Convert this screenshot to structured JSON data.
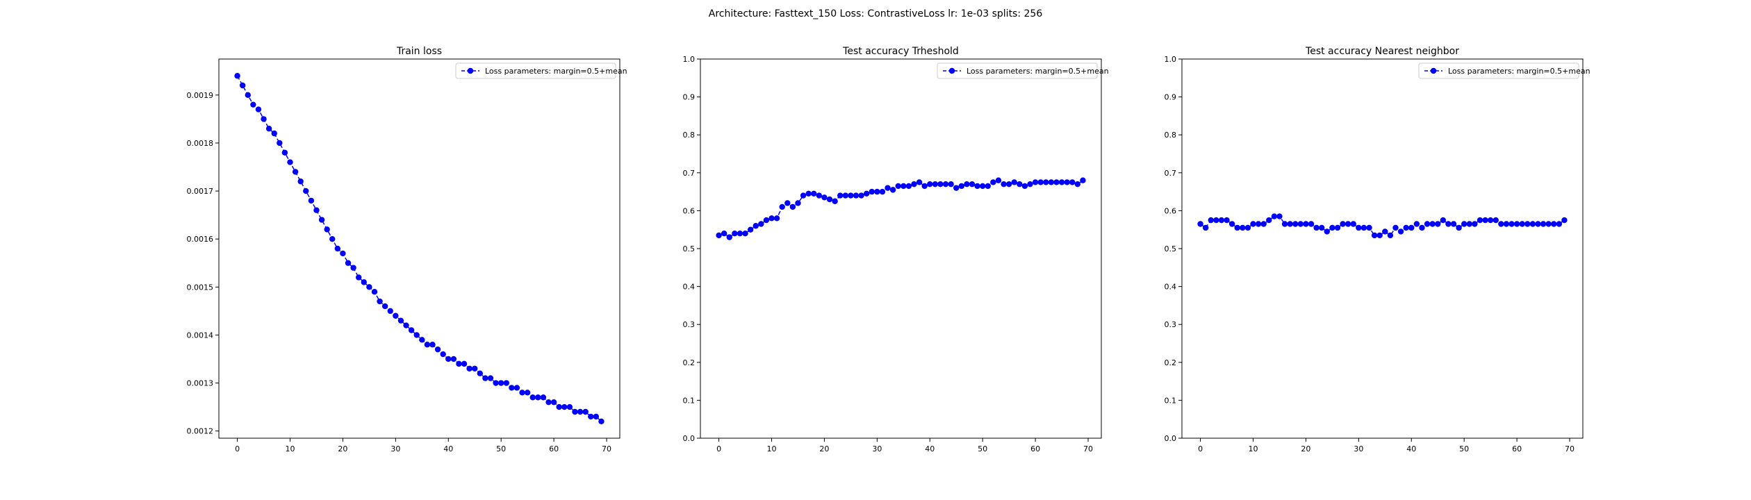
{
  "figure": {
    "suptitle": "Architecture: Fasttext_150 Loss: ContrastiveLoss lr: 1e-03 splits: 256"
  },
  "colors": {
    "series": "#0000ff",
    "axes": "#000000",
    "background": "#ffffff",
    "legend_border": "#cccccc"
  },
  "chart_data": [
    {
      "type": "line",
      "title": "Train loss",
      "xlabel": "",
      "ylabel": "",
      "xlim": [
        -3.5,
        72.5
      ],
      "ylim": [
        0.001185,
        0.001975
      ],
      "xticks": [
        0,
        10,
        20,
        30,
        40,
        50,
        60,
        70
      ],
      "yticks": [
        0.0012,
        0.0013,
        0.0014,
        0.0015,
        0.0016,
        0.0017,
        0.0018,
        0.0019
      ],
      "ytick_labels": [
        "0.0012",
        "0.0013",
        "0.0014",
        "0.0015",
        "0.0016",
        "0.0017",
        "0.0018",
        "0.0019"
      ],
      "grid": false,
      "legend_position": "top-right",
      "series": [
        {
          "name": "Loss parameters: margin=0.5+mean",
          "marker": "circle",
          "linestyle": "dashed",
          "x": [
            0,
            1,
            2,
            3,
            4,
            5,
            6,
            7,
            8,
            9,
            10,
            11,
            12,
            13,
            14,
            15,
            16,
            17,
            18,
            19,
            20,
            21,
            22,
            23,
            24,
            25,
            26,
            27,
            28,
            29,
            30,
            31,
            32,
            33,
            34,
            35,
            36,
            37,
            38,
            39,
            40,
            41,
            42,
            43,
            44,
            45,
            46,
            47,
            48,
            49,
            50,
            51,
            52,
            53,
            54,
            55,
            56,
            57,
            58,
            59,
            60,
            61,
            62,
            63,
            64,
            65,
            66,
            67,
            68,
            69
          ],
          "values": [
            0.00194,
            0.00192,
            0.0019,
            0.00188,
            0.00187,
            0.00185,
            0.00183,
            0.00182,
            0.0018,
            0.00178,
            0.00176,
            0.00174,
            0.00172,
            0.0017,
            0.00168,
            0.00166,
            0.00164,
            0.00162,
            0.0016,
            0.00158,
            0.00157,
            0.00155,
            0.00154,
            0.00152,
            0.00151,
            0.0015,
            0.00149,
            0.00147,
            0.00146,
            0.00145,
            0.00144,
            0.00143,
            0.00142,
            0.00141,
            0.0014,
            0.00139,
            0.00138,
            0.00138,
            0.00137,
            0.00136,
            0.00135,
            0.00135,
            0.00134,
            0.00134,
            0.00133,
            0.00133,
            0.00132,
            0.00131,
            0.00131,
            0.0013,
            0.0013,
            0.0013,
            0.00129,
            0.00129,
            0.00128,
            0.00128,
            0.00127,
            0.00127,
            0.00127,
            0.00126,
            0.00126,
            0.00125,
            0.00125,
            0.00125,
            0.00124,
            0.00124,
            0.00124,
            0.00123,
            0.00123,
            0.00122
          ]
        }
      ]
    },
    {
      "type": "line",
      "title": "Test accuracy Trheshold",
      "xlabel": "",
      "ylabel": "",
      "xlim": [
        -3.5,
        72.5
      ],
      "ylim": [
        0.0,
        1.0
      ],
      "xticks": [
        0,
        10,
        20,
        30,
        40,
        50,
        60,
        70
      ],
      "yticks": [
        0.0,
        0.1,
        0.2,
        0.3,
        0.4,
        0.5,
        0.6,
        0.7,
        0.8,
        0.9,
        1.0
      ],
      "ytick_labels": [
        "0.0",
        "0.1",
        "0.2",
        "0.3",
        "0.4",
        "0.5",
        "0.6",
        "0.7",
        "0.8",
        "0.9",
        "1.0"
      ],
      "grid": false,
      "legend_position": "top-right",
      "series": [
        {
          "name": "Loss parameters: margin=0.5+mean",
          "marker": "circle",
          "linestyle": "dashed",
          "x": [
            0,
            1,
            2,
            3,
            4,
            5,
            6,
            7,
            8,
            9,
            10,
            11,
            12,
            13,
            14,
            15,
            16,
            17,
            18,
            19,
            20,
            21,
            22,
            23,
            24,
            25,
            26,
            27,
            28,
            29,
            30,
            31,
            32,
            33,
            34,
            35,
            36,
            37,
            38,
            39,
            40,
            41,
            42,
            43,
            44,
            45,
            46,
            47,
            48,
            49,
            50,
            51,
            52,
            53,
            54,
            55,
            56,
            57,
            58,
            59,
            60,
            61,
            62,
            63,
            64,
            65,
            66,
            67,
            68,
            69
          ],
          "values": [
            0.535,
            0.54,
            0.53,
            0.54,
            0.54,
            0.54,
            0.55,
            0.56,
            0.565,
            0.575,
            0.58,
            0.58,
            0.61,
            0.62,
            0.61,
            0.62,
            0.64,
            0.645,
            0.645,
            0.64,
            0.635,
            0.63,
            0.625,
            0.64,
            0.64,
            0.64,
            0.64,
            0.64,
            0.645,
            0.65,
            0.65,
            0.65,
            0.66,
            0.655,
            0.665,
            0.665,
            0.665,
            0.67,
            0.675,
            0.665,
            0.67,
            0.67,
            0.67,
            0.67,
            0.67,
            0.66,
            0.665,
            0.67,
            0.67,
            0.665,
            0.665,
            0.665,
            0.675,
            0.68,
            0.67,
            0.67,
            0.675,
            0.67,
            0.665,
            0.67,
            0.675,
            0.675,
            0.675,
            0.675,
            0.675,
            0.675,
            0.675,
            0.675,
            0.67,
            0.68
          ]
        }
      ]
    },
    {
      "type": "line",
      "title": "Test accuracy Nearest neighbor",
      "xlabel": "",
      "ylabel": "",
      "xlim": [
        -3.5,
        72.5
      ],
      "ylim": [
        0.0,
        1.0
      ],
      "xticks": [
        0,
        10,
        20,
        30,
        40,
        50,
        60,
        70
      ],
      "yticks": [
        0.0,
        0.1,
        0.2,
        0.3,
        0.4,
        0.5,
        0.6,
        0.7,
        0.8,
        0.9,
        1.0
      ],
      "ytick_labels": [
        "0.0",
        "0.1",
        "0.2",
        "0.3",
        "0.4",
        "0.5",
        "0.6",
        "0.7",
        "0.8",
        "0.9",
        "1.0"
      ],
      "grid": false,
      "legend_position": "top-right",
      "series": [
        {
          "name": "Loss parameters: margin=0.5+mean",
          "marker": "circle",
          "linestyle": "dashed",
          "x": [
            0,
            1,
            2,
            3,
            4,
            5,
            6,
            7,
            8,
            9,
            10,
            11,
            12,
            13,
            14,
            15,
            16,
            17,
            18,
            19,
            20,
            21,
            22,
            23,
            24,
            25,
            26,
            27,
            28,
            29,
            30,
            31,
            32,
            33,
            34,
            35,
            36,
            37,
            38,
            39,
            40,
            41,
            42,
            43,
            44,
            45,
            46,
            47,
            48,
            49,
            50,
            51,
            52,
            53,
            54,
            55,
            56,
            57,
            58,
            59,
            60,
            61,
            62,
            63,
            64,
            65,
            66,
            67,
            68,
            69
          ],
          "values": [
            0.565,
            0.555,
            0.575,
            0.575,
            0.575,
            0.575,
            0.565,
            0.555,
            0.555,
            0.555,
            0.565,
            0.565,
            0.565,
            0.575,
            0.585,
            0.585,
            0.565,
            0.565,
            0.565,
            0.565,
            0.565,
            0.565,
            0.555,
            0.555,
            0.545,
            0.555,
            0.555,
            0.565,
            0.565,
            0.565,
            0.555,
            0.555,
            0.555,
            0.535,
            0.535,
            0.545,
            0.535,
            0.555,
            0.545,
            0.555,
            0.555,
            0.565,
            0.555,
            0.565,
            0.565,
            0.565,
            0.575,
            0.565,
            0.565,
            0.555,
            0.565,
            0.565,
            0.565,
            0.575,
            0.575,
            0.575,
            0.575,
            0.565,
            0.565,
            0.565,
            0.565,
            0.565,
            0.565,
            0.565,
            0.565,
            0.565,
            0.565,
            0.565,
            0.565,
            0.575
          ]
        }
      ]
    }
  ]
}
